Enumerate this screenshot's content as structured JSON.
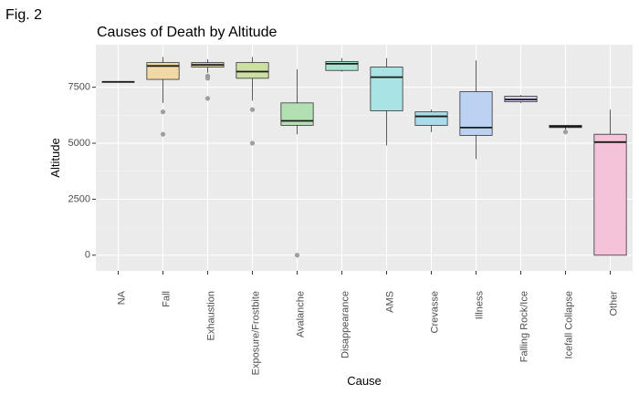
{
  "figure_label": "Fig. 2",
  "chart_data": {
    "type": "box",
    "title": "Causes of Death by Altitude",
    "xlabel": "Cause",
    "ylabel": "Altitude",
    "ylim": [
      -700,
      9400
    ],
    "yticks": [
      0,
      2500,
      5000,
      7500
    ],
    "grid": true,
    "categories": [
      "NA",
      "Fall",
      "Exhaustion",
      "Exposure/Frostbite",
      "Avalanche",
      "Disappearance",
      "AMS",
      "Crevasse",
      "Illness",
      "Falling Rock/Ice",
      "Icefall Collapse",
      "Other"
    ],
    "boxes": [
      {
        "category": "NA",
        "whisker_low": 7740,
        "q1": 7740,
        "median": 7740,
        "q3": 7740,
        "whisker_high": 7740,
        "outliers": [],
        "color": "#d9d9d9"
      },
      {
        "category": "Fall",
        "whisker_low": 6800,
        "q1": 7850,
        "median": 8450,
        "q3": 8600,
        "whisker_high": 8850,
        "outliers": [
          6400,
          5400
        ],
        "color": "#f1d9a6"
      },
      {
        "category": "Exhaustion",
        "whisker_low": 8150,
        "q1": 8400,
        "median": 8500,
        "q3": 8600,
        "whisker_high": 8750,
        "outliers": [
          8000,
          7900,
          7000
        ],
        "color": "#ddd69f"
      },
      {
        "category": "Exposure/Frostbite",
        "whisker_low": 6900,
        "q1": 7900,
        "median": 8200,
        "q3": 8600,
        "whisker_high": 8850,
        "outliers": [
          6500,
          5000
        ],
        "color": "#cde0a4"
      },
      {
        "category": "Avalanche",
        "whisker_low": 5400,
        "q1": 5800,
        "median": 6000,
        "q3": 6800,
        "whisker_high": 8300,
        "outliers": [
          0
        ],
        "color": "#b2e0b2"
      },
      {
        "category": "Disappearance",
        "whisker_low": 8200,
        "q1": 8250,
        "median": 8550,
        "q3": 8650,
        "whisker_high": 8800,
        "outliers": [],
        "color": "#a8e3d2"
      },
      {
        "category": "AMS",
        "whisker_low": 4900,
        "q1": 6450,
        "median": 7950,
        "q3": 8400,
        "whisker_high": 8800,
        "outliers": [],
        "color": "#a9e3e3"
      },
      {
        "category": "Crevasse",
        "whisker_low": 5500,
        "q1": 5800,
        "median": 6200,
        "q3": 6400,
        "whisker_high": 6500,
        "outliers": [],
        "color": "#a6dde9"
      },
      {
        "category": "Illness",
        "whisker_low": 4300,
        "q1": 5350,
        "median": 5700,
        "q3": 7300,
        "whisker_high": 8700,
        "outliers": [],
        "color": "#bcd2f2"
      },
      {
        "category": "Falling Rock/Ice",
        "whisker_low": 6800,
        "q1": 6850,
        "median": 6950,
        "q3": 7100,
        "whisker_high": 7150,
        "outliers": [],
        "color": "#d8cdf2"
      },
      {
        "category": "Icefall Collapse",
        "whisker_low": 5600,
        "q1": 5700,
        "median": 5750,
        "q3": 5800,
        "whisker_high": 5800,
        "outliers": [
          5500
        ],
        "color": "#ecc8ee"
      },
      {
        "category": "Other",
        "whisker_low": 0,
        "q1": 0,
        "median": 5050,
        "q3": 5400,
        "whisker_high": 6500,
        "outliers": [],
        "color": "#f4c2d9"
      }
    ]
  }
}
